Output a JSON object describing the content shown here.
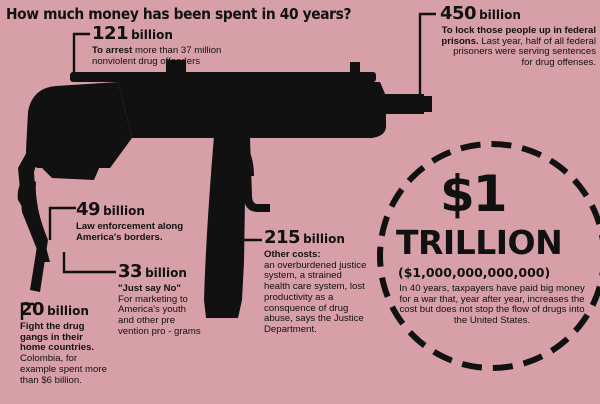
{
  "title": "How much money has been spent in 40 years?",
  "items": {
    "arrest": {
      "amount": "121",
      "unit": "billion",
      "lead": "To arrest",
      "text": " more than 37 million nonviolent drug offenders"
    },
    "prisons": {
      "amount": "450",
      "unit": "billion",
      "lead": "To lock those people up in federal prisons.",
      "text": " Last year, half of all federal prisoners were serving sentences for drug offenses."
    },
    "border": {
      "amount": "49",
      "unit": "billion",
      "lead": "Law enforcement along America's borders.",
      "text": ""
    },
    "just_say_no": {
      "amount": "33",
      "unit": "billion",
      "lead": "\"Just say No\"",
      "text": "For marketing to America's youth and other pre vention pro - grams"
    },
    "gangs": {
      "amount": "20",
      "unit": "billion",
      "lead": "Fight the drug gangs in their home countries.",
      "text": " Colombia, for example spent more than $6 billion."
    },
    "other": {
      "amount": "215",
      "unit": "billion",
      "lead": "Other costs:",
      "text": "an overburdened justice system, a strained health care system, lost productivity as a consquence of drug abuse, says the Justice Department."
    }
  },
  "total": {
    "amount": "$1",
    "word": "TRILLION",
    "full": "($1,000,000,000,000)",
    "text": "In 40 years, taxpayers have paid big money for a war that, year after year, increases the cost but does not stop the flow of drugs into the United States."
  }
}
